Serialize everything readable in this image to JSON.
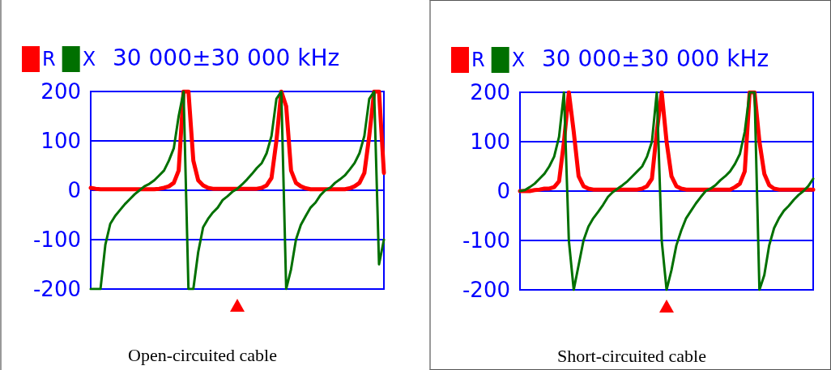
{
  "chart_data": [
    {
      "type": "line",
      "title": "30 000±30 000 kHz",
      "annotations": [
        "Open-circuited cable"
      ],
      "ylim": [
        -200,
        200
      ],
      "yticks": [
        -200,
        -100,
        0,
        100,
        200
      ],
      "tick_labels": "y",
      "grid": "y",
      "legend": "top left",
      "line_style": "solid",
      "categories": [
        null,
        null,
        null,
        null,
        null,
        null,
        null,
        null,
        null,
        null,
        null,
        null,
        null,
        null,
        null,
        null,
        null,
        null,
        null,
        null,
        null,
        null,
        null,
        null,
        null,
        null,
        null,
        null,
        null,
        null,
        null,
        null,
        null,
        null,
        null,
        null,
        null,
        null,
        null,
        null,
        null,
        null,
        null,
        null,
        null,
        null,
        null,
        null,
        null,
        null,
        null,
        null,
        null,
        null,
        null,
        null,
        null,
        null,
        null,
        null,
        null
      ],
      "series": [
        {
          "name": "R",
          "color": "#ff0000",
          "values": [
            5,
            3,
            2,
            2,
            2,
            2,
            2,
            2,
            2,
            2,
            2,
            2,
            2,
            2,
            3,
            5,
            8,
            15,
            40,
            200,
            200,
            60,
            20,
            10,
            5,
            3,
            3,
            3,
            3,
            3,
            3,
            3,
            3,
            3,
            3,
            5,
            10,
            25,
            100,
            200,
            170,
            40,
            15,
            8,
            4,
            2,
            2,
            2,
            2,
            2,
            2,
            2,
            2,
            4,
            8,
            15,
            35,
            110,
            200,
            200,
            35
          ]
        },
        {
          "name": "X",
          "color": "#007000",
          "values": [
            -200,
            -200,
            -200,
            -110,
            -68,
            -52,
            -40,
            -28,
            -18,
            -8,
            0,
            8,
            13,
            20,
            30,
            40,
            60,
            85,
            150,
            200,
            -200,
            -200,
            -125,
            -75,
            -58,
            -45,
            -35,
            -20,
            -12,
            -3,
            3,
            12,
            22,
            33,
            45,
            55,
            75,
            110,
            185,
            200,
            -200,
            -160,
            -100,
            -70,
            -52,
            -35,
            -25,
            -10,
            0,
            5,
            15,
            22,
            30,
            42,
            55,
            75,
            110,
            185,
            200,
            -150,
            -100
          ]
        }
      ]
    },
    {
      "type": "line",
      "title": "30 000±30 000 kHz",
      "annotations": [
        "Short-circuited cable"
      ],
      "ylim": [
        -200,
        200
      ],
      "yticks": [
        -200,
        -100,
        0,
        100,
        200
      ],
      "tick_labels": "y",
      "grid": "y",
      "legend": "top left",
      "line_style": "solid",
      "categories": [
        null,
        null,
        null,
        null,
        null,
        null,
        null,
        null,
        null,
        null,
        null,
        null,
        null,
        null,
        null,
        null,
        null,
        null,
        null,
        null,
        null,
        null,
        null,
        null,
        null,
        null,
        null,
        null,
        null,
        null,
        null,
        null,
        null,
        null,
        null,
        null,
        null,
        null,
        null,
        null,
        null,
        null,
        null,
        null,
        null,
        null,
        null,
        null,
        null,
        null,
        null,
        null,
        null,
        null,
        null,
        null,
        null,
        null,
        null,
        null,
        null
      ],
      "series": [
        {
          "name": "R",
          "color": "#ff0000",
          "values": [
            0,
            0,
            0,
            2,
            3,
            5,
            5,
            8,
            20,
            100,
            200,
            120,
            30,
            10,
            5,
            3,
            3,
            3,
            3,
            3,
            3,
            3,
            3,
            3,
            3,
            5,
            10,
            25,
            120,
            200,
            100,
            30,
            10,
            5,
            3,
            3,
            3,
            3,
            3,
            3,
            3,
            3,
            3,
            3,
            8,
            15,
            40,
            200,
            200,
            100,
            35,
            12,
            5,
            3,
            3,
            3,
            3,
            3,
            3,
            3,
            3
          ]
        },
        {
          "name": "X",
          "color": "#007000",
          "values": [
            0,
            2,
            8,
            15,
            25,
            35,
            50,
            70,
            110,
            200,
            -100,
            -200,
            -150,
            -100,
            -72,
            -55,
            -42,
            -28,
            -12,
            -2,
            5,
            12,
            20,
            30,
            40,
            50,
            70,
            100,
            200,
            -100,
            -200,
            -160,
            -110,
            -80,
            -55,
            -40,
            -25,
            -12,
            0,
            5,
            12,
            22,
            30,
            40,
            55,
            75,
            120,
            200,
            200,
            -200,
            -170,
            -110,
            -75,
            -55,
            -40,
            -30,
            -18,
            -8,
            0,
            10,
            25
          ]
        }
      ]
    }
  ]
}
